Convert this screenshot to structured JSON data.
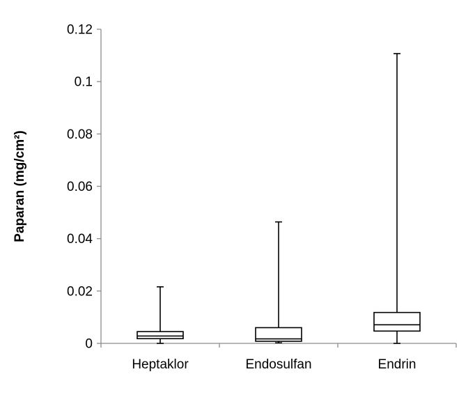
{
  "chart_data": {
    "type": "boxplot",
    "title": "",
    "xlabel": "",
    "ylabel": "Paparan (mg/cm²)",
    "ylim": [
      0,
      0.12
    ],
    "yticks": [
      "0",
      "0.02",
      "0.04",
      "0.06",
      "0.08",
      "0.1",
      "0.12"
    ],
    "categories": [
      "Heptaklor",
      "Endosulfan",
      "Endrin"
    ],
    "boxes": [
      {
        "category": "Heptaklor",
        "min": 0.0,
        "q1": 0.0018,
        "median": 0.0028,
        "q3": 0.0045,
        "max": 0.0216
      },
      {
        "category": "Endosulfan",
        "min": 0.0002,
        "q1": 0.0008,
        "median": 0.0017,
        "q3": 0.006,
        "max": 0.0464
      },
      {
        "category": "Endrin",
        "min": 0.0,
        "q1": 0.0047,
        "median": 0.0071,
        "q3": 0.0118,
        "max": 0.1107
      }
    ],
    "grid": false,
    "legend": "none",
    "colors": {
      "box_fill": "#ffffff",
      "box_stroke": "#000000",
      "axis": "#8c8c8c"
    }
  }
}
